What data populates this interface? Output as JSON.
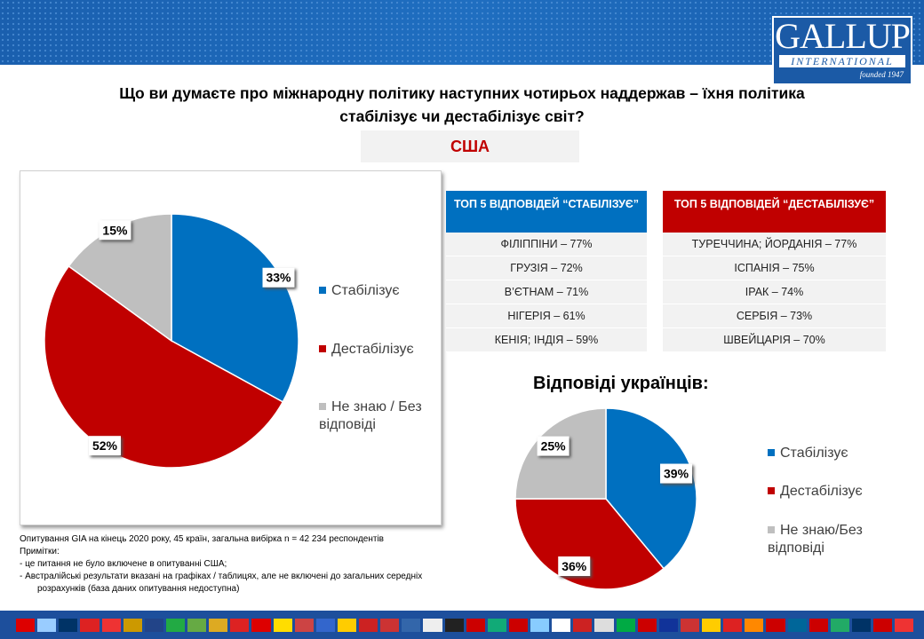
{
  "header": {
    "logo_main": "GALLUP",
    "logo_sub": "INTERNATIONAL",
    "logo_founded": "founded 1947"
  },
  "title": "Що ви думаєте про міжнародну політику наступних чотирьох наддержав – їхня політика стабілізує чи дестабілізує світ?",
  "country": "США",
  "colors": {
    "stabilizes": "#0070c0",
    "destabilizes": "#c00000",
    "dont_know": "#bfbfbf"
  },
  "chart_data": [
    {
      "type": "pie",
      "categories": [
        "Стабілізує",
        "Дестабілізує",
        "Не знаю / Без відповіді"
      ],
      "values": [
        33,
        52,
        15
      ],
      "labels": [
        "33%",
        "52%",
        "15%"
      ],
      "legend_placement": "right"
    },
    {
      "type": "pie",
      "title": "Відповіді українців:",
      "categories": [
        "Стабілізує",
        "Дестабілізує",
        "Не знаю/Без відповіді"
      ],
      "values": [
        39,
        36,
        25
      ],
      "labels": [
        "39%",
        "36%",
        "25%"
      ],
      "legend_placement": "right"
    }
  ],
  "top_stab": {
    "header": "ТОП 5 ВІДПОВІДЕЙ “СТАБІЛІЗУЄ”",
    "rows": [
      "ФІЛІППІНИ – 77%",
      "ГРУЗІЯ – 72%",
      "В’ЄТНАМ – 71%",
      "НІГЕРІЯ – 61%",
      "КЕНІЯ; ІНДІЯ – 59%"
    ]
  },
  "top_destab": {
    "header": "ТОП 5 ВІДПОВІДЕЙ “ДЕСТАБІЛІЗУЄ”",
    "rows": [
      "ТУРЕЧЧИНА; ЙОРДАНІЯ – 77%",
      "ІСПАНІЯ – 75%",
      "ІРАК – 74%",
      "СЕРБІЯ – 73%",
      "ШВЕЙЦАРІЯ – 70%"
    ]
  },
  "notes": {
    "line1": "Опитування GIA на кінець 2020 року, 45 країн, загальна вибірка n = 42 234 респондентів",
    "heading": "Примітки:",
    "items": [
      "-      це питання не було включене в опитуванні США;",
      "-      Австралійські результати вказані на графіках / таблицях, але не включені до загальних середніх розрахунків (база даних опитування недоступна)"
    ]
  }
}
